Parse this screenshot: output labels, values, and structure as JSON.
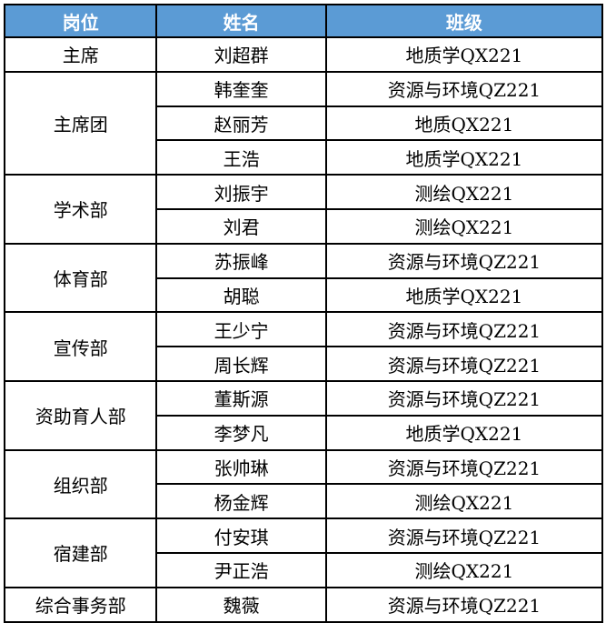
{
  "header": {
    "position": "岗位",
    "name": "姓名",
    "class": "班级"
  },
  "colors": {
    "header_bg": "#5B9BD5",
    "header_text": "#FFFFFF"
  },
  "groups": [
    {
      "position": "主席",
      "members": [
        {
          "name": "刘超群",
          "class": "地质学QX221"
        }
      ]
    },
    {
      "position": "主席团",
      "members": [
        {
          "name": "韩奎奎",
          "class": "资源与环境QZ221"
        },
        {
          "name": "赵丽芳",
          "class": "地质QX221"
        },
        {
          "name": "王浩",
          "class": "地质学QX221"
        }
      ]
    },
    {
      "position": "学术部",
      "members": [
        {
          "name": "刘振宇",
          "class": "测绘QX221"
        },
        {
          "name": "刘君",
          "class": "测绘QX221"
        }
      ]
    },
    {
      "position": "体育部",
      "members": [
        {
          "name": "苏振峰",
          "class": "资源与环境QZ221"
        },
        {
          "name": "胡聪",
          "class": "地质学QX221"
        }
      ]
    },
    {
      "position": "宣传部",
      "members": [
        {
          "name": "王少宁",
          "class": "资源与环境QZ221"
        },
        {
          "name": "周长辉",
          "class": "资源与环境QZ221"
        }
      ]
    },
    {
      "position": "资助育人部",
      "members": [
        {
          "name": "董斯源",
          "class": "资源与环境QZ221"
        },
        {
          "name": "李梦凡",
          "class": "地质学QX221"
        }
      ]
    },
    {
      "position": "组织部",
      "members": [
        {
          "name": "张帅琳",
          "class": "资源与环境QZ221"
        },
        {
          "name": "杨金辉",
          "class": "测绘QX221"
        }
      ]
    },
    {
      "position": "宿建部",
      "members": [
        {
          "name": "付安琪",
          "class": "资源与环境QZ221"
        },
        {
          "name": "尹正浩",
          "class": "测绘QX221"
        }
      ]
    },
    {
      "position": "综合事务部",
      "members": [
        {
          "name": "魏薇",
          "class": "资源与环境QZ221"
        }
      ]
    }
  ]
}
